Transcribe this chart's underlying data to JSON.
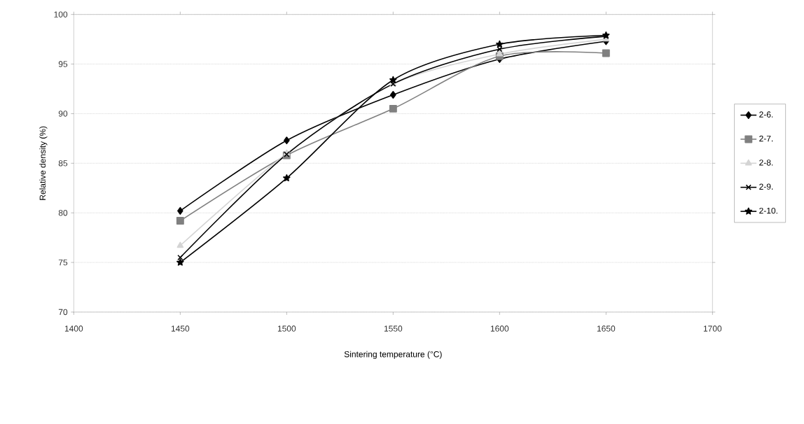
{
  "chart_data": {
    "type": "line",
    "xlabel": "Sintering temperature (°C)",
    "ylabel": "Relative density (%)",
    "x": [
      1450,
      1500,
      1550,
      1600,
      1650
    ],
    "series": [
      {
        "name": "2-6.",
        "color": "#000000",
        "marker": "diamond",
        "values": [
          80.2,
          87.3,
          91.9,
          95.5,
          97.3
        ]
      },
      {
        "name": "2-7.",
        "color": "#808080",
        "marker": "square",
        "values": [
          79.2,
          85.8,
          90.5,
          95.8,
          96.1
        ]
      },
      {
        "name": "2-8.",
        "color": "#d4d4d4",
        "marker": "triangle",
        "values": [
          76.7,
          86.0,
          93.0,
          96.0,
          97.5
        ]
      },
      {
        "name": "2-9.",
        "color": "#000000",
        "marker": "cross",
        "values": [
          75.5,
          85.9,
          93.0,
          96.5,
          97.8
        ]
      },
      {
        "name": "2-10.",
        "color": "#000000",
        "marker": "star",
        "values": [
          75.0,
          83.5,
          93.4,
          97.0,
          97.9
        ]
      }
    ],
    "xlim": [
      1400,
      1700
    ],
    "xticks": [
      1400,
      1450,
      1500,
      1550,
      1600,
      1650,
      1700
    ],
    "ylim": [
      70,
      100
    ],
    "yticks": [
      70,
      75,
      80,
      85,
      90,
      95,
      100
    ],
    "grid": "y",
    "legend": "right",
    "line_style": "solid"
  }
}
